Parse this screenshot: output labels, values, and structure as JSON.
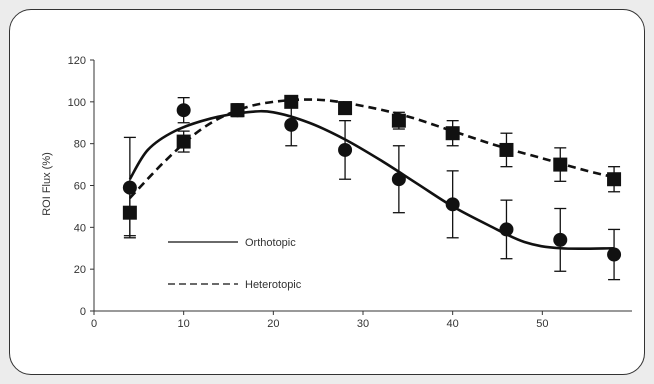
{
  "chart_data": {
    "type": "line",
    "title": "",
    "xlabel": "",
    "ylabel": "ROI Flux (%)",
    "xlim": [
      0,
      60
    ],
    "ylim": [
      0,
      120
    ],
    "x_ticks": [
      0,
      10,
      20,
      30,
      40,
      50
    ],
    "y_ticks": [
      0,
      20,
      40,
      60,
      80,
      100,
      120
    ],
    "grid": false,
    "legend_position": "lower-left",
    "series": [
      {
        "name": "Orthotopic",
        "line_style": "solid",
        "marker": "circle",
        "color": "#111111",
        "points": [
          {
            "x": 4,
            "y": 59,
            "err": 24
          },
          {
            "x": 10,
            "y": 96,
            "err": 6
          },
          {
            "x": 16,
            "y": 96,
            "err": 3
          },
          {
            "x": 22,
            "y": 89,
            "err": 10
          },
          {
            "x": 28,
            "y": 77,
            "err": 14
          },
          {
            "x": 34,
            "y": 63,
            "err": 16
          },
          {
            "x": 40,
            "y": 51,
            "err": 16
          },
          {
            "x": 46,
            "y": 39,
            "err": 14
          },
          {
            "x": 52,
            "y": 34,
            "err": 15
          },
          {
            "x": 58,
            "y": 27,
            "err": 12
          }
        ],
        "fit": [
          [
            4,
            63
          ],
          [
            6,
            77
          ],
          [
            9,
            86
          ],
          [
            13,
            92
          ],
          [
            17,
            95
          ],
          [
            20,
            95
          ],
          [
            24,
            90
          ],
          [
            28,
            82
          ],
          [
            32,
            72
          ],
          [
            36,
            61
          ],
          [
            40,
            50
          ],
          [
            44,
            41
          ],
          [
            48,
            33
          ],
          [
            52,
            30
          ],
          [
            58,
            30
          ]
        ]
      },
      {
        "name": "Heterotopic",
        "line_style": "dashed",
        "marker": "square",
        "color": "#111111",
        "points": [
          {
            "x": 4,
            "y": 47,
            "err": 11
          },
          {
            "x": 10,
            "y": 81,
            "err": 5
          },
          {
            "x": 16,
            "y": 96,
            "err": 3
          },
          {
            "x": 22,
            "y": 100,
            "err": 2
          },
          {
            "x": 28,
            "y": 97,
            "err": 3
          },
          {
            "x": 34,
            "y": 91,
            "err": 4
          },
          {
            "x": 40,
            "y": 85,
            "err": 6
          },
          {
            "x": 46,
            "y": 77,
            "err": 8
          },
          {
            "x": 52,
            "y": 70,
            "err": 8
          },
          {
            "x": 58,
            "y": 63,
            "err": 6
          }
        ],
        "fit": [
          [
            4,
            54
          ],
          [
            8,
            72
          ],
          [
            12,
            87
          ],
          [
            16,
            96
          ],
          [
            20,
            100
          ],
          [
            25,
            101
          ],
          [
            30,
            98
          ],
          [
            35,
            93
          ],
          [
            40,
            86
          ],
          [
            45,
            79
          ],
          [
            50,
            73
          ],
          [
            55,
            67
          ],
          [
            58,
            64
          ]
        ]
      }
    ]
  }
}
